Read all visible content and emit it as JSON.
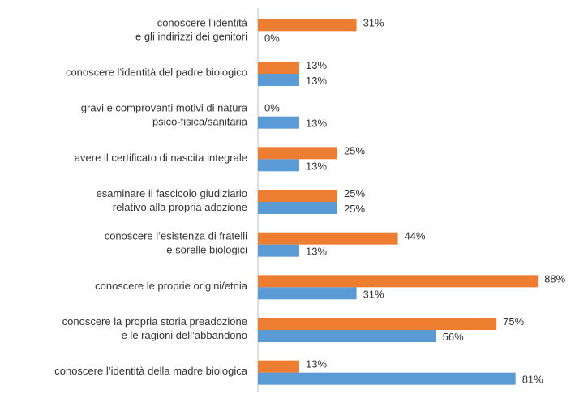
{
  "chart_data": {
    "type": "hbar",
    "categories": [
      [
        "conoscere l’identità",
        "e gli indirizzi dei genitori"
      ],
      [
        "conoscere l’identità del padre biologico"
      ],
      [
        "gravi e comprovanti motivi di natura",
        "psico-fisica/sanitaria"
      ],
      [
        "avere il certificato di nascita integrale"
      ],
      [
        "esaminare il fascicolo giudiziario",
        "relativo alla propria adozione"
      ],
      [
        "conoscere l’esistenza di fratelli",
        "e sorelle biologici"
      ],
      [
        "conoscere le proprie origini/etnia"
      ],
      [
        "conoscere la propria storia preadozione",
        "e le ragioni dell’abbandono"
      ],
      [
        "conoscere l’identità della madre biologica"
      ]
    ],
    "series": [
      {
        "color": "#ed7d31",
        "values": [
          31,
          13,
          0,
          25,
          25,
          44,
          88,
          75,
          13
        ],
        "value_labels": [
          "31%",
          "13%",
          "0%",
          "25%",
          "25%",
          "44%",
          "88%",
          "75%",
          "13%"
        ]
      },
      {
        "color": "#5b9bd5",
        "values": [
          0,
          13,
          13,
          13,
          25,
          13,
          31,
          56,
          81
        ],
        "value_labels": [
          "0%",
          "13%",
          "13%",
          "13%",
          "25%",
          "13%",
          "31%",
          "56%",
          "81%"
        ]
      }
    ],
    "xlim": [
      0,
      90
    ]
  }
}
